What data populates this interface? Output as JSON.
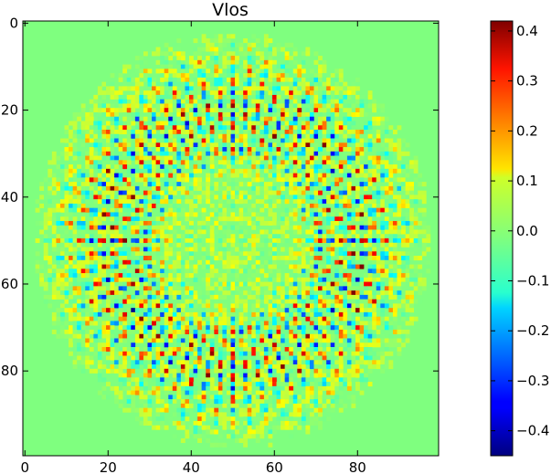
{
  "chart_data": {
    "type": "heatmap",
    "title": "Vlos",
    "xlabel": "",
    "ylabel": "",
    "grid_size": [
      100,
      100
    ],
    "x_ticks": [
      "0",
      "20",
      "40",
      "60",
      "80"
    ],
    "x_tick_values": [
      0,
      20,
      40,
      60,
      80
    ],
    "y_ticks": [
      "0",
      "20",
      "40",
      "60",
      "80"
    ],
    "y_tick_values": [
      0,
      20,
      40,
      60,
      80
    ],
    "xlim": [
      -0.5,
      99.5
    ],
    "ylim": [
      99.5,
      -0.5
    ],
    "colorbar": {
      "colormap": "jet",
      "vmin": -0.45,
      "vmax": 0.42,
      "ticks": [
        "0.4",
        "0.3",
        "0.2",
        "0.1",
        "0.0",
        "−0.1",
        "−0.2",
        "−0.3",
        "−0.4"
      ],
      "tick_values": [
        0.4,
        0.3,
        0.2,
        0.1,
        0.0,
        -0.1,
        -0.2,
        -0.3,
        -0.4
      ]
    },
    "background_value": 0.02,
    "pattern": {
      "description_center": [
        50,
        50
      ],
      "inner_radius": 14,
      "strong_ring_radius": [
        22,
        36
      ],
      "outer_radius": 46,
      "rays": 64
    }
  },
  "colors": {
    "background_cell": "#7fff7f",
    "axes_frame": "#000000"
  }
}
